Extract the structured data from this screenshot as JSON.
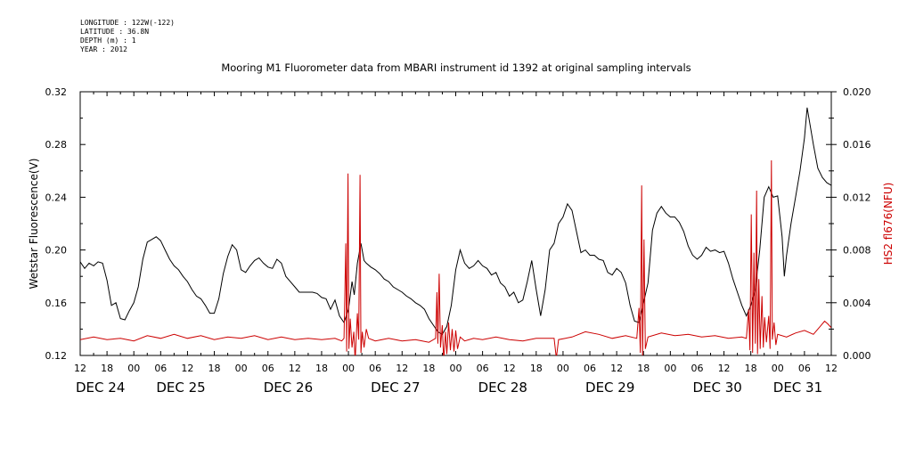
{
  "metadata": [
    "LONGITUDE : 122W(-122)",
    "LATITUDE : 36.8N",
    "DEPTH (m) : 1",
    "YEAR : 2012"
  ],
  "chart_data": {
    "type": "line",
    "title": "Mooring M1 Fluorometer data from MBARI instrument id 1392 at original sampling intervals",
    "x_unit": "hours since DEC 24 12:00, 2012",
    "xlim": [
      0,
      168
    ],
    "x_tick_labels": [
      "12",
      "18",
      "00",
      "06",
      "12",
      "18",
      "00",
      "06",
      "12",
      "18",
      "00",
      "06",
      "12",
      "18",
      "00",
      "06",
      "12",
      "18",
      "00",
      "06",
      "12",
      "18",
      "00",
      "06",
      "12",
      "18",
      "00",
      "06",
      "12"
    ],
    "date_labels": [
      {
        "label": "DEC 24",
        "x": 0
      },
      {
        "label": "DEC 25",
        "x": 18
      },
      {
        "label": "DEC 26",
        "x": 42
      },
      {
        "label": "DEC 27",
        "x": 66
      },
      {
        "label": "DEC 28",
        "x": 90
      },
      {
        "label": "DEC 29",
        "x": 114
      },
      {
        "label": "DEC 30",
        "x": 138
      },
      {
        "label": "DEC 31",
        "x": 156
      }
    ],
    "y_left": {
      "label": "Wetstar Fluorescence(V)",
      "ylim": [
        0.12,
        0.32
      ],
      "ticks": [
        "0.12",
        "0.16",
        "0.20",
        "0.24",
        "0.28",
        "0.32"
      ],
      "color": "#000000"
    },
    "y_right": {
      "label": "HS2 fl676(NFU)",
      "ylim": [
        0.0,
        0.02
      ],
      "ticks": [
        "0.000",
        "0.004",
        "0.008",
        "0.012",
        "0.016",
        "0.020"
      ],
      "color": "#cc0000"
    },
    "series": [
      {
        "axis": "left",
        "color": "#000000",
        "points": [
          [
            0,
            0.191
          ],
          [
            1,
            0.186
          ],
          [
            2,
            0.19
          ],
          [
            3,
            0.188
          ],
          [
            4,
            0.191
          ],
          [
            5,
            0.19
          ],
          [
            6,
            0.177
          ],
          [
            7,
            0.158
          ],
          [
            8,
            0.16
          ],
          [
            9,
            0.148
          ],
          [
            10,
            0.147
          ],
          [
            11,
            0.154
          ],
          [
            12,
            0.16
          ],
          [
            13,
            0.172
          ],
          [
            14,
            0.193
          ],
          [
            15,
            0.206
          ],
          [
            16,
            0.208
          ],
          [
            17,
            0.21
          ],
          [
            18,
            0.207
          ],
          [
            19,
            0.2
          ],
          [
            20,
            0.193
          ],
          [
            21,
            0.188
          ],
          [
            22,
            0.185
          ],
          [
            23,
            0.18
          ],
          [
            24,
            0.176
          ],
          [
            25,
            0.17
          ],
          [
            26,
            0.165
          ],
          [
            27,
            0.163
          ],
          [
            28,
            0.158
          ],
          [
            29,
            0.152
          ],
          [
            30,
            0.152
          ],
          [
            31,
            0.163
          ],
          [
            32,
            0.182
          ],
          [
            33,
            0.195
          ],
          [
            34,
            0.204
          ],
          [
            35,
            0.2
          ],
          [
            36,
            0.185
          ],
          [
            37,
            0.183
          ],
          [
            38,
            0.188
          ],
          [
            39,
            0.192
          ],
          [
            40,
            0.194
          ],
          [
            41,
            0.19
          ],
          [
            42,
            0.187
          ],
          [
            43,
            0.186
          ],
          [
            44,
            0.193
          ],
          [
            45,
            0.19
          ],
          [
            46,
            0.18
          ],
          [
            47,
            0.176
          ],
          [
            48,
            0.172
          ],
          [
            49,
            0.168
          ],
          [
            50,
            0.168
          ],
          [
            51,
            0.168
          ],
          [
            52,
            0.168
          ],
          [
            53,
            0.167
          ],
          [
            54,
            0.164
          ],
          [
            55,
            0.163
          ],
          [
            56,
            0.155
          ],
          [
            57,
            0.162
          ],
          [
            58,
            0.15
          ],
          [
            59,
            0.145
          ],
          [
            60,
            0.155
          ],
          [
            60.8,
            0.176
          ],
          [
            61.3,
            0.166
          ],
          [
            62,
            0.19
          ],
          [
            62.8,
            0.205
          ],
          [
            63.5,
            0.192
          ],
          [
            64,
            0.19
          ],
          [
            65,
            0.187
          ],
          [
            66,
            0.185
          ],
          [
            67,
            0.182
          ],
          [
            68,
            0.178
          ],
          [
            69,
            0.176
          ],
          [
            70,
            0.172
          ],
          [
            71,
            0.17
          ],
          [
            72,
            0.168
          ],
          [
            73,
            0.165
          ],
          [
            74,
            0.163
          ],
          [
            75,
            0.16
          ],
          [
            76,
            0.158
          ],
          [
            77,
            0.155
          ],
          [
            78,
            0.148
          ],
          [
            79,
            0.143
          ],
          [
            80,
            0.138
          ],
          [
            81,
            0.136
          ],
          [
            82,
            0.142
          ],
          [
            83,
            0.158
          ],
          [
            84,
            0.185
          ],
          [
            85,
            0.2
          ],
          [
            86,
            0.19
          ],
          [
            87,
            0.186
          ],
          [
            88,
            0.188
          ],
          [
            89,
            0.192
          ],
          [
            90,
            0.188
          ],
          [
            91,
            0.186
          ],
          [
            92,
            0.181
          ],
          [
            93,
            0.183
          ],
          [
            94,
            0.175
          ],
          [
            95,
            0.172
          ],
          [
            96,
            0.165
          ],
          [
            97,
            0.168
          ],
          [
            98,
            0.16
          ],
          [
            99,
            0.162
          ],
          [
            100,
            0.176
          ],
          [
            101,
            0.192
          ],
          [
            102,
            0.17
          ],
          [
            103,
            0.15
          ],
          [
            104,
            0.17
          ],
          [
            105,
            0.2
          ],
          [
            106,
            0.205
          ],
          [
            107,
            0.22
          ],
          [
            108,
            0.225
          ],
          [
            109,
            0.235
          ],
          [
            110,
            0.23
          ],
          [
            111,
            0.214
          ],
          [
            112,
            0.198
          ],
          [
            113,
            0.2
          ],
          [
            114,
            0.196
          ],
          [
            115,
            0.196
          ],
          [
            116,
            0.193
          ],
          [
            117,
            0.192
          ],
          [
            118,
            0.183
          ],
          [
            119,
            0.181
          ],
          [
            120,
            0.186
          ],
          [
            121,
            0.183
          ],
          [
            122,
            0.175
          ],
          [
            123,
            0.158
          ],
          [
            124,
            0.146
          ],
          [
            125,
            0.145
          ],
          [
            126,
            0.16
          ],
          [
            127,
            0.175
          ],
          [
            128,
            0.215
          ],
          [
            129,
            0.228
          ],
          [
            130,
            0.233
          ],
          [
            131,
            0.228
          ],
          [
            132,
            0.225
          ],
          [
            133,
            0.225
          ],
          [
            134,
            0.221
          ],
          [
            135,
            0.214
          ],
          [
            136,
            0.203
          ],
          [
            137,
            0.196
          ],
          [
            138,
            0.193
          ],
          [
            139,
            0.196
          ],
          [
            140,
            0.202
          ],
          [
            141,
            0.199
          ],
          [
            142,
            0.2
          ],
          [
            143,
            0.198
          ],
          [
            144,
            0.199
          ],
          [
            145,
            0.19
          ],
          [
            146,
            0.178
          ],
          [
            147,
            0.168
          ],
          [
            148,
            0.158
          ],
          [
            149,
            0.15
          ],
          [
            150,
            0.158
          ],
          [
            151,
            0.17
          ],
          [
            152,
            0.2
          ],
          [
            153,
            0.24
          ],
          [
            154,
            0.248
          ],
          [
            155,
            0.24
          ],
          [
            156,
            0.241
          ],
          [
            157,
            0.21
          ],
          [
            157.5,
            0.18
          ],
          [
            158,
            0.196
          ],
          [
            159,
            0.22
          ],
          [
            160,
            0.24
          ],
          [
            161,
            0.26
          ],
          [
            162,
            0.285
          ],
          [
            162.6,
            0.308
          ],
          [
            163,
            0.3
          ],
          [
            164,
            0.28
          ],
          [
            165,
            0.262
          ],
          [
            166,
            0.255
          ],
          [
            167,
            0.251
          ],
          [
            168,
            0.249
          ]
        ]
      },
      {
        "axis": "right",
        "color": "#cc0000",
        "points": [
          [
            0,
            0.0012
          ],
          [
            3,
            0.0014
          ],
          [
            6,
            0.0012
          ],
          [
            9,
            0.0013
          ],
          [
            12,
            0.0011
          ],
          [
            15,
            0.0015
          ],
          [
            18,
            0.0013
          ],
          [
            21,
            0.0016
          ],
          [
            24,
            0.0013
          ],
          [
            27,
            0.0015
          ],
          [
            30,
            0.0012
          ],
          [
            33,
            0.0014
          ],
          [
            36,
            0.0013
          ],
          [
            39,
            0.0015
          ],
          [
            42,
            0.0012
          ],
          [
            45,
            0.0014
          ],
          [
            48,
            0.0012
          ],
          [
            51,
            0.0013
          ],
          [
            54,
            0.0012
          ],
          [
            57,
            0.0013
          ],
          [
            58.5,
            0.0011
          ],
          [
            59,
            0.0013
          ],
          [
            59.4,
            0.0085
          ],
          [
            59.6,
            0.0003
          ],
          [
            59.9,
            0.0138
          ],
          [
            60.1,
            0.0005
          ],
          [
            60.4,
            0.0028
          ],
          [
            60.8,
            0.0006
          ],
          [
            61.2,
            0.0018
          ],
          [
            61.5,
            -0.0004
          ],
          [
            62,
            0.0032
          ],
          [
            62.3,
            0.0012
          ],
          [
            62.6,
            0.0137
          ],
          [
            62.8,
            0.0002
          ],
          [
            63.1,
            0.0018
          ],
          [
            63.5,
            0.0006
          ],
          [
            64,
            0.002
          ],
          [
            64.5,
            0.0013
          ],
          [
            66,
            0.0011
          ],
          [
            69,
            0.0013
          ],
          [
            72,
            0.0011
          ],
          [
            75,
            0.0012
          ],
          [
            78,
            0.001
          ],
          [
            79.5,
            0.0013
          ],
          [
            79.8,
            0.0048
          ],
          [
            80,
            0.0009
          ],
          [
            80.3,
            0.0062
          ],
          [
            80.6,
            0.0006
          ],
          [
            81,
            0.0023
          ],
          [
            81.3,
            -0.0004
          ],
          [
            81.7,
            0.0018
          ],
          [
            82,
            0.0001
          ],
          [
            82.4,
            0.0025
          ],
          [
            82.8,
            0.0004
          ],
          [
            83.2,
            0.002
          ],
          [
            83.6,
            0.0003
          ],
          [
            84,
            0.0019
          ],
          [
            84.4,
            0.0005
          ],
          [
            85,
            0.0014
          ],
          [
            86,
            0.0011
          ],
          [
            88,
            0.0013
          ],
          [
            90,
            0.0012
          ],
          [
            93,
            0.0014
          ],
          [
            96,
            0.0012
          ],
          [
            99,
            0.0011
          ],
          [
            102,
            0.0013
          ],
          [
            106,
            0.0013
          ],
          [
            106.5,
            -0.0002
          ],
          [
            107,
            0.0012
          ],
          [
            110,
            0.0014
          ],
          [
            113,
            0.0018
          ],
          [
            116,
            0.0016
          ],
          [
            119,
            0.0013
          ],
          [
            122,
            0.0015
          ],
          [
            124.5,
            0.0013
          ],
          [
            125,
            0.0036
          ],
          [
            125.3,
            0.0002
          ],
          [
            125.6,
            0.0129
          ],
          [
            125.8,
            -0.0002
          ],
          [
            126.1,
            0.0088
          ],
          [
            126.4,
            0.0005
          ],
          [
            127,
            0.0014
          ],
          [
            130,
            0.0017
          ],
          [
            133,
            0.0015
          ],
          [
            136,
            0.0016
          ],
          [
            139,
            0.0014
          ],
          [
            142,
            0.0015
          ],
          [
            145,
            0.0013
          ],
          [
            148,
            0.0014
          ],
          [
            149,
            0.0013
          ],
          [
            149.5,
            0.0035
          ],
          [
            149.8,
            0.0004
          ],
          [
            150.1,
            0.0107
          ],
          [
            150.4,
            0.0002
          ],
          [
            150.7,
            0.0078
          ],
          [
            151,
            0.0009
          ],
          [
            151.3,
            0.0125
          ],
          [
            151.5,
            0.0001
          ],
          [
            151.8,
            0.0058
          ],
          [
            152.1,
            0.0005
          ],
          [
            152.5,
            0.0045
          ],
          [
            152.8,
            0.0006
          ],
          [
            153.1,
            0.0029
          ],
          [
            153.5,
            0.001
          ],
          [
            154,
            0.003
          ],
          [
            154.3,
            0.0005
          ],
          [
            154.6,
            0.0148
          ],
          [
            154.8,
            0.0012
          ],
          [
            155.2,
            0.0025
          ],
          [
            155.6,
            0.0008
          ],
          [
            156,
            0.0016
          ],
          [
            158,
            0.0014
          ],
          [
            160,
            0.0017
          ],
          [
            162,
            0.0019
          ],
          [
            164,
            0.0016
          ],
          [
            165.5,
            0.0022
          ],
          [
            166.5,
            0.0026
          ],
          [
            167.2,
            0.0024
          ],
          [
            168,
            0.0021
          ]
        ]
      }
    ],
    "grid": false,
    "legend": "none"
  }
}
